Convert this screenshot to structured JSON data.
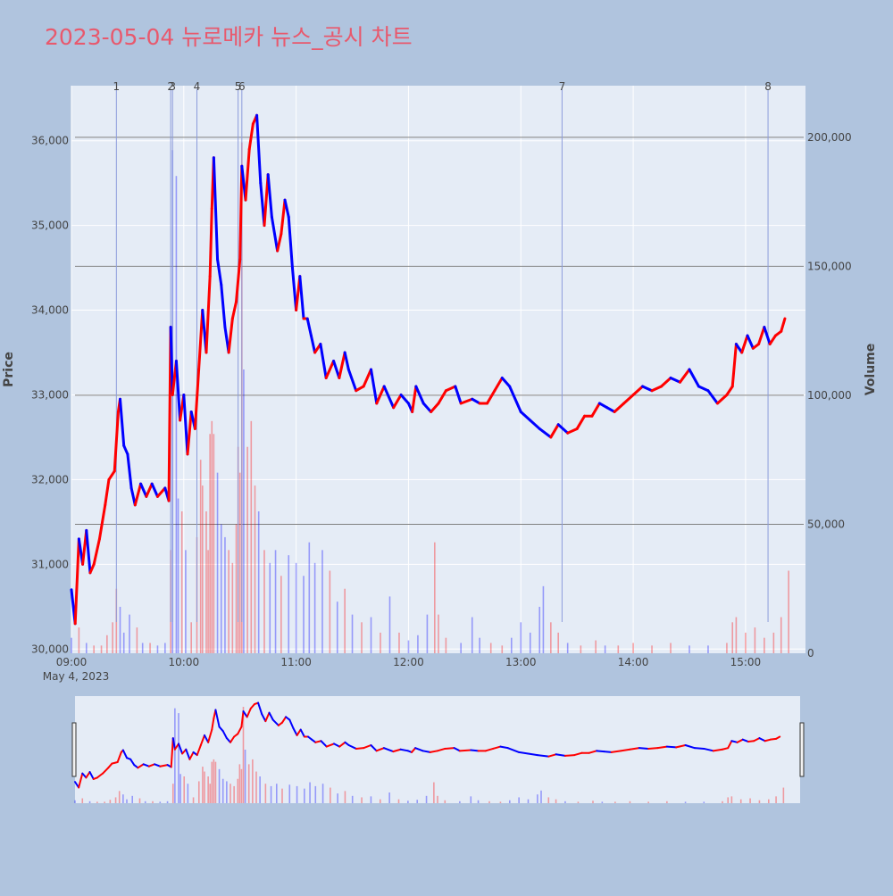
{
  "chart_data": {
    "type": "candlestick",
    "title": "2023-05-04 뉴로메카 뉴스_공시 차트",
    "date_label": "May 4, 2023",
    "ylabel": "Price",
    "y2label": "Volume",
    "price_ylim": [
      29950,
      36650
    ],
    "volume_ylim": [
      0,
      220000
    ],
    "x_range": [
      "09:00",
      "15:32"
    ],
    "price_ticks": [
      {
        "value": 30000,
        "label": "30,000"
      },
      {
        "value": 31000,
        "label": "31,000"
      },
      {
        "value": 32000,
        "label": "32,000"
      },
      {
        "value": 33000,
        "label": "33,000"
      },
      {
        "value": 34000,
        "label": "34,000"
      },
      {
        "value": 35000,
        "label": "35,000"
      },
      {
        "value": 36000,
        "label": "36,000"
      }
    ],
    "volume_ticks": [
      {
        "value": 0,
        "label": "0"
      },
      {
        "value": 50000,
        "label": "50,000"
      },
      {
        "value": 100000,
        "label": "100,000"
      },
      {
        "value": 150000,
        "label": "150,000"
      },
      {
        "value": 200000,
        "label": "200,000"
      }
    ],
    "time_ticks": [
      {
        "time": "09:00",
        "label": "09:00"
      },
      {
        "time": "10:00",
        "label": "10:00"
      },
      {
        "time": "11:00",
        "label": "11:00"
      },
      {
        "time": "12:00",
        "label": "12:00"
      },
      {
        "time": "13:00",
        "label": "13:00"
      },
      {
        "time": "14:00",
        "label": "14:00"
      },
      {
        "time": "15:00",
        "label": "15:00"
      }
    ],
    "news_markers": [
      {
        "label": "1",
        "time": "09:24"
      },
      {
        "label": "2",
        "time": "09:53"
      },
      {
        "label": "3",
        "time": "09:54"
      },
      {
        "label": "4",
        "time": "10:07"
      },
      {
        "label": "5",
        "time": "10:29"
      },
      {
        "label": "6",
        "time": "10:31"
      },
      {
        "label": "7",
        "time": "13:22"
      },
      {
        "label": "8",
        "time": "15:12"
      }
    ],
    "volume_reference_lines": [
      50000,
      100000,
      150000,
      200000
    ],
    "price_path": [
      [
        "09:00",
        30700
      ],
      [
        "09:02",
        30300
      ],
      [
        "09:04",
        31300
      ],
      [
        "09:06",
        31000
      ],
      [
        "09:08",
        31400
      ],
      [
        "09:10",
        30900
      ],
      [
        "09:12",
        31000
      ],
      [
        "09:15",
        31300
      ],
      [
        "09:18",
        31700
      ],
      [
        "09:20",
        32000
      ],
      [
        "09:23",
        32100
      ],
      [
        "09:25",
        32800
      ],
      [
        "09:26",
        32950
      ],
      [
        "09:28",
        32400
      ],
      [
        "09:30",
        32300
      ],
      [
        "09:32",
        31900
      ],
      [
        "09:34",
        31700
      ],
      [
        "09:37",
        31950
      ],
      [
        "09:40",
        31800
      ],
      [
        "09:43",
        31950
      ],
      [
        "09:46",
        31800
      ],
      [
        "09:50",
        31900
      ],
      [
        "09:52",
        31750
      ],
      [
        "09:53",
        33800
      ],
      [
        "09:54",
        33000
      ],
      [
        "09:56",
        33400
      ],
      [
        "09:58",
        32700
      ],
      [
        "10:00",
        33000
      ],
      [
        "10:02",
        32300
      ],
      [
        "10:04",
        32800
      ],
      [
        "10:06",
        32600
      ],
      [
        "10:08",
        33300
      ],
      [
        "10:10",
        34000
      ],
      [
        "10:12",
        33500
      ],
      [
        "10:14",
        34400
      ],
      [
        "10:15",
        35200
      ],
      [
        "10:16",
        35800
      ],
      [
        "10:18",
        34600
      ],
      [
        "10:20",
        34300
      ],
      [
        "10:22",
        33800
      ],
      [
        "10:24",
        33500
      ],
      [
        "10:26",
        33900
      ],
      [
        "10:28",
        34100
      ],
      [
        "10:30",
        34600
      ],
      [
        "10:31",
        35700
      ],
      [
        "10:33",
        35300
      ],
      [
        "10:35",
        35900
      ],
      [
        "10:37",
        36200
      ],
      [
        "10:39",
        36300
      ],
      [
        "10:41",
        35500
      ],
      [
        "10:43",
        35000
      ],
      [
        "10:45",
        35600
      ],
      [
        "10:47",
        35100
      ],
      [
        "10:50",
        34700
      ],
      [
        "10:52",
        34900
      ],
      [
        "10:54",
        35300
      ],
      [
        "10:56",
        35100
      ],
      [
        "10:58",
        34500
      ],
      [
        "11:00",
        34000
      ],
      [
        "11:02",
        34400
      ],
      [
        "11:04",
        33900
      ],
      [
        "11:06",
        33900
      ],
      [
        "11:08",
        33700
      ],
      [
        "11:10",
        33500
      ],
      [
        "11:13",
        33600
      ],
      [
        "11:16",
        33200
      ],
      [
        "11:20",
        33400
      ],
      [
        "11:23",
        33200
      ],
      [
        "11:26",
        33500
      ],
      [
        "11:28",
        33300
      ],
      [
        "11:32",
        33050
      ],
      [
        "11:36",
        33100
      ],
      [
        "11:40",
        33300
      ],
      [
        "11:43",
        32900
      ],
      [
        "11:47",
        33100
      ],
      [
        "11:52",
        32850
      ],
      [
        "11:56",
        33000
      ],
      [
        "12:00",
        32900
      ],
      [
        "12:02",
        32800
      ],
      [
        "12:04",
        33100
      ],
      [
        "12:08",
        32900
      ],
      [
        "12:12",
        32800
      ],
      [
        "12:16",
        32900
      ],
      [
        "12:20",
        33050
      ],
      [
        "12:25",
        33100
      ],
      [
        "12:28",
        32900
      ],
      [
        "12:34",
        32950
      ],
      [
        "12:38",
        32900
      ],
      [
        "12:42",
        32900
      ],
      [
        "12:46",
        33050
      ],
      [
        "12:50",
        33200
      ],
      [
        "12:54",
        33100
      ],
      [
        "13:00",
        32800
      ],
      [
        "13:05",
        32700
      ],
      [
        "13:10",
        32600
      ],
      [
        "13:16",
        32500
      ],
      [
        "13:20",
        32650
      ],
      [
        "13:25",
        32550
      ],
      [
        "13:30",
        32600
      ],
      [
        "13:34",
        32750
      ],
      [
        "13:38",
        32750
      ],
      [
        "13:42",
        32900
      ],
      [
        "13:46",
        32850
      ],
      [
        "13:50",
        32800
      ],
      [
        "13:55",
        32900
      ],
      [
        "14:00",
        33000
      ],
      [
        "14:05",
        33100
      ],
      [
        "14:10",
        33050
      ],
      [
        "14:15",
        33100
      ],
      [
        "14:20",
        33200
      ],
      [
        "14:25",
        33150
      ],
      [
        "14:30",
        33300
      ],
      [
        "14:35",
        33100
      ],
      [
        "14:40",
        33050
      ],
      [
        "14:45",
        32900
      ],
      [
        "14:50",
        33000
      ],
      [
        "14:53",
        33100
      ],
      [
        "14:55",
        33600
      ],
      [
        "14:58",
        33500
      ],
      [
        "15:01",
        33700
      ],
      [
        "15:04",
        33550
      ],
      [
        "15:07",
        33600
      ],
      [
        "15:10",
        33800
      ],
      [
        "15:13",
        33600
      ],
      [
        "15:16",
        33700
      ],
      [
        "15:19",
        33750
      ],
      [
        "15:21",
        33900
      ]
    ],
    "volume_bars": [
      [
        "09:00",
        6000
      ],
      [
        "09:04",
        10000
      ],
      [
        "09:08",
        4000
      ],
      [
        "09:12",
        3000
      ],
      [
        "09:16",
        3000
      ],
      [
        "09:19",
        7000
      ],
      [
        "09:22",
        12000
      ],
      [
        "09:24",
        25000
      ],
      [
        "09:26",
        18000
      ],
      [
        "09:28",
        8000
      ],
      [
        "09:31",
        15000
      ],
      [
        "09:35",
        10000
      ],
      [
        "09:38",
        4000
      ],
      [
        "09:42",
        4000
      ],
      [
        "09:46",
        3000
      ],
      [
        "09:50",
        4000
      ],
      [
        "09:53",
        40000
      ],
      [
        "09:54",
        195000
      ],
      [
        "09:56",
        185000
      ],
      [
        "09:57",
        60000
      ],
      [
        "09:59",
        55000
      ],
      [
        "10:01",
        40000
      ],
      [
        "10:04",
        12000
      ],
      [
        "10:07",
        45000
      ],
      [
        "10:09",
        75000
      ],
      [
        "10:10",
        65000
      ],
      [
        "10:12",
        55000
      ],
      [
        "10:13",
        40000
      ],
      [
        "10:14",
        85000
      ],
      [
        "10:15",
        90000
      ],
      [
        "10:16",
        85000
      ],
      [
        "10:18",
        70000
      ],
      [
        "10:20",
        50000
      ],
      [
        "10:22",
        45000
      ],
      [
        "10:24",
        40000
      ],
      [
        "10:26",
        35000
      ],
      [
        "10:28",
        50000
      ],
      [
        "10:29",
        80000
      ],
      [
        "10:30",
        70000
      ],
      [
        "10:31",
        198000
      ],
      [
        "10:32",
        110000
      ],
      [
        "10:34",
        80000
      ],
      [
        "10:36",
        90000
      ],
      [
        "10:38",
        65000
      ],
      [
        "10:40",
        55000
      ],
      [
        "10:43",
        40000
      ],
      [
        "10:46",
        35000
      ],
      [
        "10:49",
        40000
      ],
      [
        "10:52",
        30000
      ],
      [
        "10:56",
        38000
      ],
      [
        "11:00",
        35000
      ],
      [
        "11:04",
        30000
      ],
      [
        "11:07",
        43000
      ],
      [
        "11:10",
        35000
      ],
      [
        "11:14",
        40000
      ],
      [
        "11:18",
        32000
      ],
      [
        "11:22",
        20000
      ],
      [
        "11:26",
        25000
      ],
      [
        "11:30",
        15000
      ],
      [
        "11:35",
        12000
      ],
      [
        "11:40",
        14000
      ],
      [
        "11:45",
        8000
      ],
      [
        "11:50",
        22000
      ],
      [
        "11:55",
        8000
      ],
      [
        "12:00",
        5000
      ],
      [
        "12:05",
        7000
      ],
      [
        "12:10",
        15000
      ],
      [
        "12:14",
        43000
      ],
      [
        "12:16",
        15000
      ],
      [
        "12:20",
        6000
      ],
      [
        "12:28",
        4000
      ],
      [
        "12:34",
        14000
      ],
      [
        "12:38",
        6000
      ],
      [
        "12:44",
        4000
      ],
      [
        "12:50",
        3000
      ],
      [
        "12:55",
        6000
      ],
      [
        "13:00",
        12000
      ],
      [
        "13:05",
        8000
      ],
      [
        "13:10",
        18000
      ],
      [
        "13:12",
        26000
      ],
      [
        "13:16",
        12000
      ],
      [
        "13:20",
        8000
      ],
      [
        "13:25",
        4000
      ],
      [
        "13:32",
        3000
      ],
      [
        "13:40",
        5000
      ],
      [
        "13:45",
        3000
      ],
      [
        "13:52",
        3000
      ],
      [
        "14:00",
        4000
      ],
      [
        "14:10",
        3000
      ],
      [
        "14:20",
        4000
      ],
      [
        "14:30",
        3000
      ],
      [
        "14:40",
        3000
      ],
      [
        "14:50",
        4000
      ],
      [
        "14:53",
        12000
      ],
      [
        "14:55",
        14000
      ],
      [
        "15:00",
        8000
      ],
      [
        "15:05",
        10000
      ],
      [
        "15:10",
        6000
      ],
      [
        "15:15",
        8000
      ],
      [
        "15:19",
        14000
      ],
      [
        "15:23",
        32000
      ]
    ],
    "colors": {
      "page_bg": "#b0c4de",
      "plot_bg": "#e5ecf6",
      "grid": "#ffffff",
      "up": "#ff0000",
      "down": "#0000ff",
      "title": "#e8596d",
      "marker_line": "#8c9cdb",
      "ref_line": "#808080",
      "text": "#444444"
    }
  }
}
